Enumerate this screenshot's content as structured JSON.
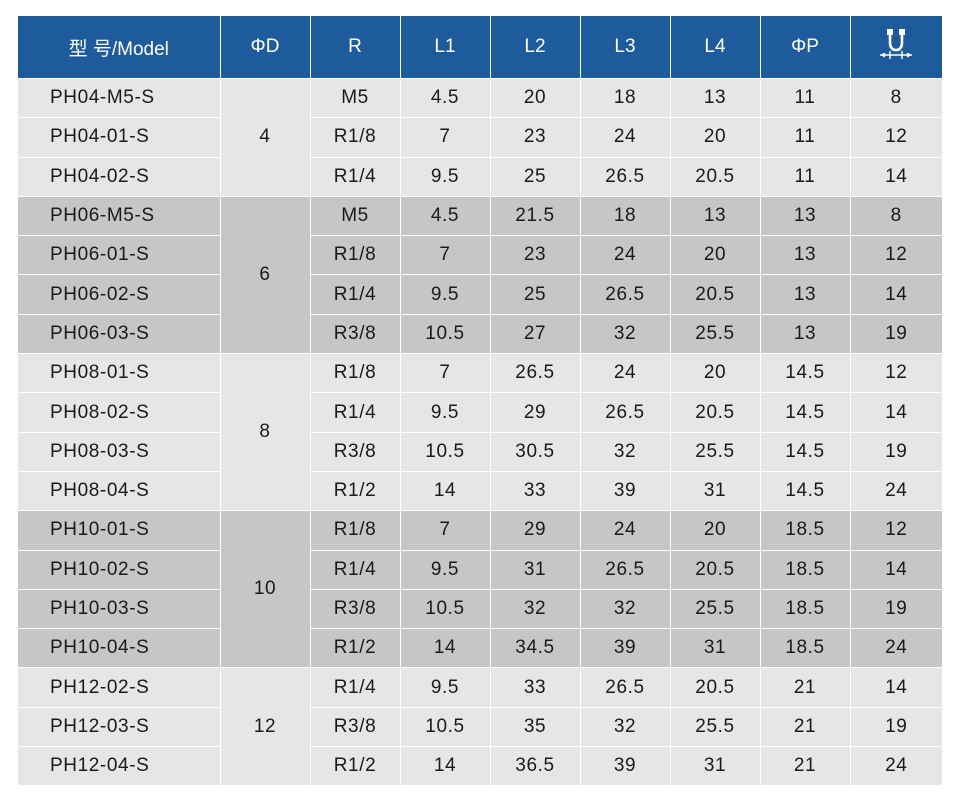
{
  "headers": [
    "型 号/Model",
    "ΦD",
    "R",
    "L1",
    "L2",
    "L3",
    "L4",
    "ΦP"
  ],
  "header_last_icon": "width-across-flats-icon",
  "colors": {
    "header_bg": "#1d5b9c",
    "row_light": "#e6e6e6",
    "row_dark": "#c6c6c6"
  },
  "groups": [
    {
      "d": "4",
      "shade": "light",
      "rows": [
        [
          "PH04-M5-S",
          "M5",
          "4.5",
          "20",
          "18",
          "13",
          "11",
          "8"
        ],
        [
          "PH04-01-S",
          "R1/8",
          "7",
          "23",
          "24",
          "20",
          "11",
          "12"
        ],
        [
          "PH04-02-S",
          "R1/4",
          "9.5",
          "25",
          "26.5",
          "20.5",
          "11",
          "14"
        ]
      ]
    },
    {
      "d": "6",
      "shade": "dark",
      "rows": [
        [
          "PH06-M5-S",
          "M5",
          "4.5",
          "21.5",
          "18",
          "13",
          "13",
          "8"
        ],
        [
          "PH06-01-S",
          "R1/8",
          "7",
          "23",
          "24",
          "20",
          "13",
          "12"
        ],
        [
          "PH06-02-S",
          "R1/4",
          "9.5",
          "25",
          "26.5",
          "20.5",
          "13",
          "14"
        ],
        [
          "PH06-03-S",
          "R3/8",
          "10.5",
          "27",
          "32",
          "25.5",
          "13",
          "19"
        ]
      ]
    },
    {
      "d": "8",
      "shade": "light",
      "rows": [
        [
          "PH08-01-S",
          "R1/8",
          "7",
          "26.5",
          "24",
          "20",
          "14.5",
          "12"
        ],
        [
          "PH08-02-S",
          "R1/4",
          "9.5",
          "29",
          "26.5",
          "20.5",
          "14.5",
          "14"
        ],
        [
          "PH08-03-S",
          "R3/8",
          "10.5",
          "30.5",
          "32",
          "25.5",
          "14.5",
          "19"
        ],
        [
          "PH08-04-S",
          "R1/2",
          "14",
          "33",
          "39",
          "31",
          "14.5",
          "24"
        ]
      ]
    },
    {
      "d": "10",
      "shade": "dark",
      "rows": [
        [
          "PH10-01-S",
          "R1/8",
          "7",
          "29",
          "24",
          "20",
          "18.5",
          "12"
        ],
        [
          "PH10-02-S",
          "R1/4",
          "9.5",
          "31",
          "26.5",
          "20.5",
          "18.5",
          "14"
        ],
        [
          "PH10-03-S",
          "R3/8",
          "10.5",
          "32",
          "32",
          "25.5",
          "18.5",
          "19"
        ],
        [
          "PH10-04-S",
          "R1/2",
          "14",
          "34.5",
          "39",
          "31",
          "18.5",
          "24"
        ]
      ]
    },
    {
      "d": "12",
      "shade": "light",
      "rows": [
        [
          "PH12-02-S",
          "R1/4",
          "9.5",
          "33",
          "26.5",
          "20.5",
          "21",
          "14"
        ],
        [
          "PH12-03-S",
          "R3/8",
          "10.5",
          "35",
          "32",
          "25.5",
          "21",
          "19"
        ],
        [
          "PH12-04-S",
          "R1/2",
          "14",
          "36.5",
          "39",
          "31",
          "21",
          "24"
        ]
      ]
    }
  ]
}
